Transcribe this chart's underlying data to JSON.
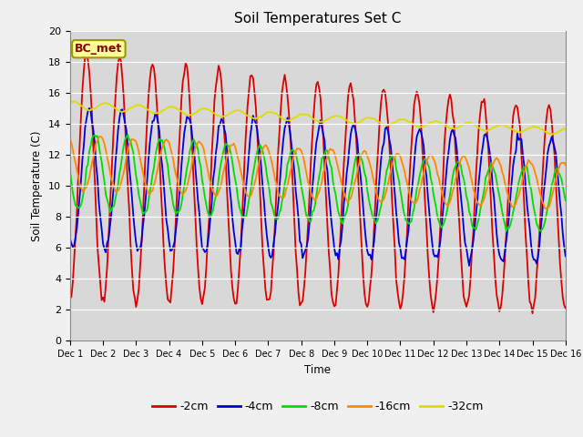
{
  "title": "Soil Temperatures Set C",
  "xlabel": "Time",
  "ylabel": "Soil Temperature (C)",
  "ylim": [
    0,
    20
  ],
  "xlim": [
    0,
    360
  ],
  "annotation": "BC_met",
  "legend_labels": [
    "-2cm",
    "-4cm",
    "-8cm",
    "-16cm",
    "-32cm"
  ],
  "legend_colors": [
    "#dd0000",
    "#0000dd",
    "#00dd00",
    "#ff8800",
    "#dddd00"
  ],
  "xtick_labels": [
    "Dec 1",
    "Dec 2",
    "Dec 3",
    "Dec 4",
    "Dec 5",
    "Dec 6",
    "Dec 7",
    "Dec 8",
    "Dec 9",
    "Dec 10",
    "Dec 11",
    "Dec 12",
    "Dec 13",
    "Dec 14",
    "Dec 15",
    "Dec 16"
  ],
  "xtick_positions": [
    0,
    24,
    48,
    72,
    96,
    120,
    144,
    168,
    192,
    216,
    240,
    264,
    288,
    312,
    336,
    360
  ],
  "ytick_positions": [
    0,
    2,
    4,
    6,
    8,
    10,
    12,
    14,
    16,
    18,
    20
  ],
  "fig_bg_color": "#f0f0f0",
  "plot_bg_color": "#d8d8d8",
  "title_fontsize": 11,
  "line_width": 1.3
}
